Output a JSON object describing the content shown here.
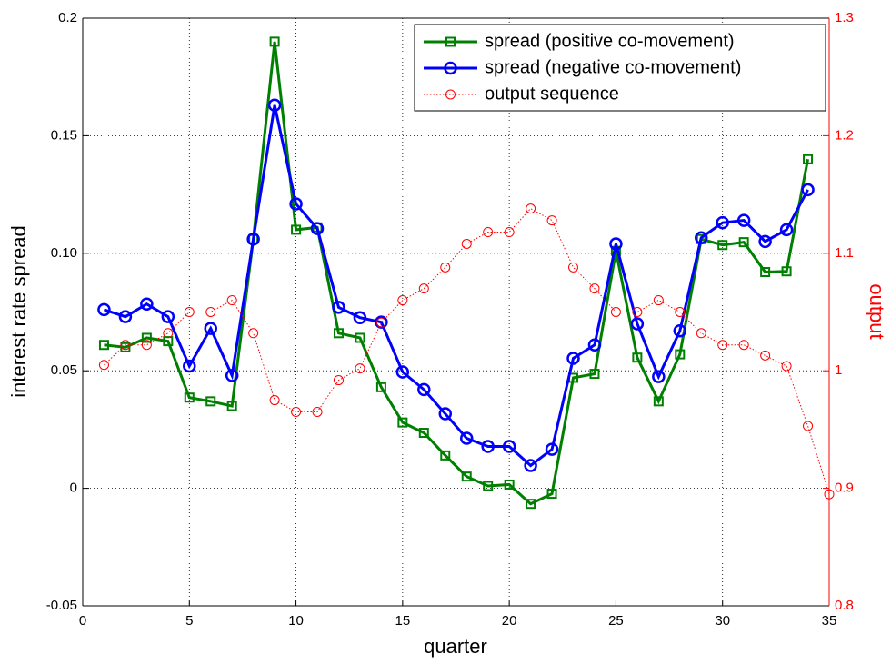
{
  "chart_data": {
    "type": "line",
    "xlabel": "quarter",
    "ylabel": "interest rate spread",
    "y2label": "output",
    "xlim": [
      0,
      35
    ],
    "xticks": [
      0,
      5,
      10,
      15,
      20,
      25,
      30,
      35
    ],
    "ylim": [
      -0.05,
      0.2
    ],
    "yticks": [
      -0.05,
      0,
      0.05,
      {
        "value": 0.1,
        "label": "0.10"
      },
      0.15,
      0.2
    ],
    "y2lim": [
      0.8,
      1.3
    ],
    "y2ticks": [
      0.8,
      0.9,
      1,
      1.1,
      1.2,
      1.3
    ],
    "grid": true,
    "legend": "upper right",
    "series": [
      {
        "name": "spread (positive co-movement)",
        "color": "#008000",
        "marker": "square",
        "x": [
          1,
          2,
          3,
          4,
          5,
          6,
          7,
          8,
          9,
          10,
          11,
          12,
          13,
          14,
          15,
          16,
          17,
          18,
          19,
          20,
          21,
          22,
          23,
          24,
          25,
          26,
          27,
          28,
          29,
          30,
          31,
          32,
          33,
          34
        ],
        "values": [
          0.061,
          0.06,
          0.064,
          0.0626,
          0.0386,
          0.037,
          0.035,
          0.106,
          0.19,
          0.11,
          0.111,
          0.066,
          0.064,
          0.043,
          0.028,
          0.0236,
          0.014,
          0.005,
          0.001,
          0.0016,
          -0.0066,
          -0.0023,
          0.047,
          0.0487,
          0.101,
          0.0556,
          0.037,
          0.057,
          0.106,
          0.1035,
          0.1047,
          0.092,
          0.0923,
          0.14
        ]
      },
      {
        "name": "spread (negative co-movement)",
        "color": "#0000ff",
        "marker": "circle",
        "x": [
          1,
          2,
          3,
          4,
          5,
          6,
          7,
          8,
          9,
          10,
          11,
          12,
          13,
          14,
          15,
          16,
          17,
          18,
          19,
          20,
          21,
          22,
          23,
          24,
          25,
          26,
          27,
          28,
          29,
          30,
          31,
          32,
          33,
          34
        ],
        "values": [
          0.076,
          0.073,
          0.0784,
          0.073,
          0.052,
          0.068,
          0.048,
          0.106,
          0.163,
          0.121,
          0.1105,
          0.077,
          0.0726,
          0.0707,
          0.0495,
          0.042,
          0.0317,
          0.0213,
          0.0178,
          0.0178,
          0.0097,
          0.0166,
          0.0553,
          0.061,
          0.104,
          0.07,
          0.0475,
          0.067,
          0.1066,
          0.113,
          0.114,
          0.105,
          0.11,
          0.127
        ]
      },
      {
        "name": "output sequence",
        "color": "#ff0000",
        "marker": "circle",
        "axis": "y2",
        "x": [
          1,
          2,
          3,
          4,
          5,
          6,
          7,
          8,
          9,
          10,
          11,
          12,
          13,
          14,
          15,
          16,
          17,
          18,
          19,
          20,
          21,
          22,
          23,
          24,
          25,
          26,
          27,
          28,
          29,
          30,
          31,
          32,
          33,
          34,
          35
        ],
        "values": [
          1.005,
          1.022,
          1.022,
          1.032,
          1.05,
          1.05,
          1.06,
          1.032,
          0.975,
          0.965,
          0.965,
          0.992,
          1.002,
          1.041,
          1.06,
          1.07,
          1.088,
          1.108,
          1.118,
          1.118,
          1.138,
          1.128,
          1.088,
          1.07,
          1.05,
          1.05,
          1.06,
          1.05,
          1.032,
          1.022,
          1.022,
          1.013,
          1.004,
          0.953,
          0.895
        ]
      }
    ]
  }
}
